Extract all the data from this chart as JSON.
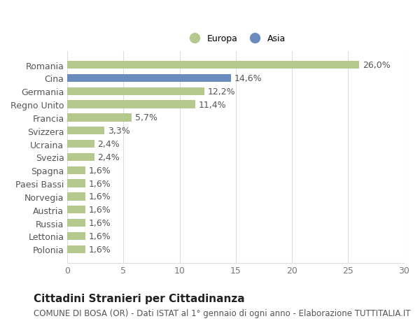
{
  "categories": [
    "Polonia",
    "Lettonia",
    "Russia",
    "Austria",
    "Norvegia",
    "Paesi Bassi",
    "Spagna",
    "Svezia",
    "Ucraina",
    "Svizzera",
    "Francia",
    "Regno Unito",
    "Germania",
    "Cina",
    "Romania"
  ],
  "values": [
    1.6,
    1.6,
    1.6,
    1.6,
    1.6,
    1.6,
    1.6,
    2.4,
    2.4,
    3.3,
    5.7,
    11.4,
    12.2,
    14.6,
    26.0
  ],
  "labels": [
    "1,6%",
    "1,6%",
    "1,6%",
    "1,6%",
    "1,6%",
    "1,6%",
    "1,6%",
    "2,4%",
    "2,4%",
    "3,3%",
    "5,7%",
    "11,4%",
    "12,2%",
    "14,6%",
    "26,0%"
  ],
  "colors": [
    "#b5c98e",
    "#b5c98e",
    "#b5c98e",
    "#b5c98e",
    "#b5c98e",
    "#b5c98e",
    "#b5c98e",
    "#b5c98e",
    "#b5c98e",
    "#b5c98e",
    "#b5c98e",
    "#b5c98e",
    "#b5c98e",
    "#6b8bbf",
    "#b5c98e"
  ],
  "legend_europa_color": "#b5c98e",
  "legend_asia_color": "#6b8bbf",
  "xlim": [
    0,
    30
  ],
  "xticks": [
    0,
    5,
    10,
    15,
    20,
    25,
    30
  ],
  "title": "Cittadini Stranieri per Cittadinanza",
  "subtitle": "COMUNE DI BOSA (OR) - Dati ISTAT al 1° gennaio di ogni anno - Elaborazione TUTTITALIA.IT",
  "background_color": "#ffffff",
  "grid_color": "#dddddd",
  "bar_height": 0.6,
  "label_fontsize": 9,
  "tick_fontsize": 9,
  "title_fontsize": 11,
  "subtitle_fontsize": 8.5
}
